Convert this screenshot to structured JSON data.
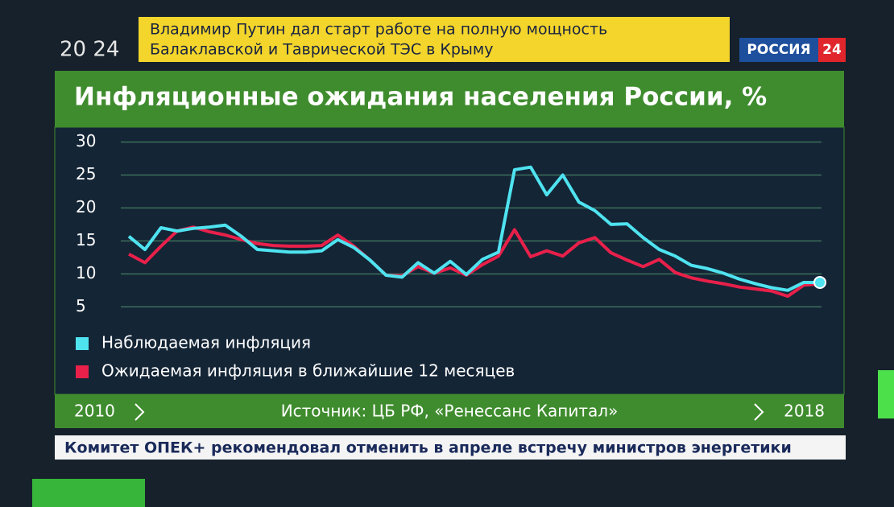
{
  "broadcast": {
    "clock": "20 24",
    "headline": [
      "Владимир Путин дал старт работе на полную мощность",
      "Балаклавской и Таврической ТЭС в Крыму"
    ],
    "channel": "РОССИЯ",
    "channel_number": "24",
    "ticker": "Комитет ОПЕК+ рекомендовал отменить в апреле встречу министров энергетики"
  },
  "chart_data": {
    "type": "line",
    "title": "Инфляционные ожидания населения России, %",
    "x_start": "2010",
    "x_end": "2018",
    "source": "Источник: ЦБ РФ, «Ренессанс Капитал»",
    "categories": [
      null,
      null,
      null,
      null,
      null,
      null,
      null,
      null,
      null,
      null,
      null,
      null,
      null,
      null,
      null,
      null,
      null,
      null,
      null,
      null,
      null,
      null,
      null,
      null,
      null,
      null,
      null,
      null,
      null,
      null,
      null,
      null,
      null,
      null,
      null,
      null,
      null,
      null,
      null,
      null,
      null,
      null,
      null,
      null
    ],
    "series": [
      {
        "name": "Наблюдаемая инфляция",
        "color": "#4fe3f0",
        "values": [
          15.7,
          13.7,
          17.0,
          16.5,
          16.9,
          17.1,
          17.4,
          15.7,
          13.7,
          13.5,
          13.3,
          13.3,
          13.5,
          15.2,
          14.0,
          12.1,
          9.8,
          9.5,
          11.7,
          10.1,
          11.9,
          9.9,
          12.2,
          13.3,
          25.8,
          26.2,
          22.0,
          25.0,
          20.9,
          19.6,
          17.5,
          17.6,
          15.5,
          13.7,
          12.7,
          11.3,
          10.8,
          10.1,
          9.2,
          8.5,
          7.9,
          7.5,
          8.7,
          8.7
        ]
      },
      {
        "name": "Ожидаемая инфляция в ближайшие 12 месяцев",
        "color": "#e8204a",
        "values": [
          13.0,
          11.7,
          14.2,
          16.5,
          17.1,
          16.4,
          15.9,
          15.2,
          14.6,
          14.3,
          14.2,
          14.2,
          14.3,
          15.9,
          14.2,
          12.1,
          9.8,
          9.7,
          11.1,
          10.1,
          10.9,
          9.8,
          11.4,
          12.7,
          16.7,
          12.6,
          13.5,
          12.7,
          14.7,
          15.5,
          13.2,
          12.1,
          11.1,
          12.2,
          10.2,
          9.4,
          8.9,
          8.5,
          8.0,
          7.7,
          7.4,
          6.6,
          8.3,
          8.5
        ]
      }
    ],
    "ylim": [
      3.2,
      30.8
    ],
    "yticks": [
      5,
      10,
      15,
      20,
      25,
      30
    ],
    "grid": true,
    "legend": "bottom-left"
  }
}
